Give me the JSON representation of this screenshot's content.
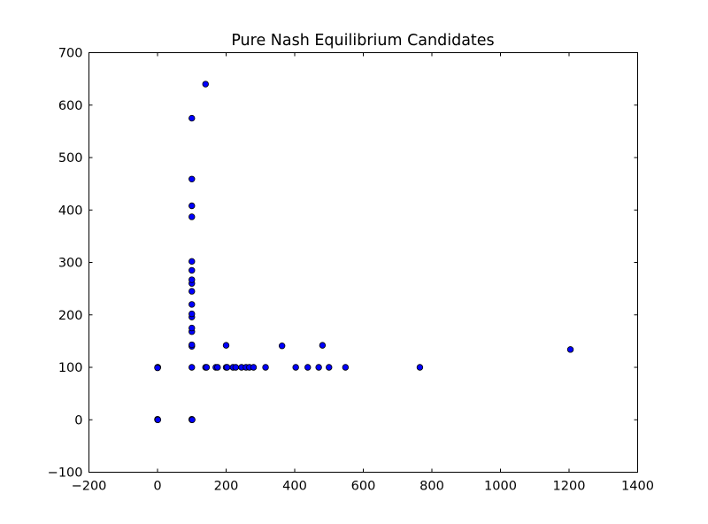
{
  "chart_data": {
    "type": "scatter",
    "title": "Pure Nash Equilibrium Candidates",
    "xlabel": "",
    "ylabel": "",
    "xlim": [
      -200,
      1400
    ],
    "ylim": [
      -100,
      700
    ],
    "xticks": [
      -200,
      0,
      200,
      400,
      600,
      800,
      1000,
      1200,
      1400
    ],
    "yticks": [
      -100,
      0,
      100,
      200,
      300,
      400,
      500,
      600,
      700
    ],
    "xtick_labels": [
      "−200",
      "0",
      "200",
      "400",
      "600",
      "800",
      "1000",
      "1200",
      "1400"
    ],
    "ytick_labels": [
      "−100",
      "0",
      "100",
      "200",
      "300",
      "400",
      "500",
      "600",
      "700"
    ],
    "grid": false,
    "marker_color": "#0000ff",
    "points": [
      {
        "x": 0,
        "y": 0
      },
      {
        "x": 0,
        "y": 1
      },
      {
        "x": 1,
        "y": 0
      },
      {
        "x": 0,
        "y": 100
      },
      {
        "x": 1,
        "y": 100
      },
      {
        "x": 0,
        "y": 99
      },
      {
        "x": 100,
        "y": 0
      },
      {
        "x": 100,
        "y": 1
      },
      {
        "x": 101,
        "y": 0
      },
      {
        "x": 100,
        "y": 100
      },
      {
        "x": 100,
        "y": 140
      },
      {
        "x": 100,
        "y": 143
      },
      {
        "x": 100,
        "y": 168
      },
      {
        "x": 100,
        "y": 175
      },
      {
        "x": 100,
        "y": 196
      },
      {
        "x": 100,
        "y": 202
      },
      {
        "x": 100,
        "y": 220
      },
      {
        "x": 100,
        "y": 245
      },
      {
        "x": 100,
        "y": 260
      },
      {
        "x": 100,
        "y": 267
      },
      {
        "x": 100,
        "y": 285
      },
      {
        "x": 100,
        "y": 302
      },
      {
        "x": 100,
        "y": 387
      },
      {
        "x": 100,
        "y": 408
      },
      {
        "x": 100,
        "y": 459
      },
      {
        "x": 100,
        "y": 575
      },
      {
        "x": 140,
        "y": 640
      },
      {
        "x": 140,
        "y": 100
      },
      {
        "x": 143,
        "y": 100
      },
      {
        "x": 170,
        "y": 100
      },
      {
        "x": 175,
        "y": 100
      },
      {
        "x": 200,
        "y": 100
      },
      {
        "x": 203,
        "y": 100
      },
      {
        "x": 200,
        "y": 142
      },
      {
        "x": 220,
        "y": 100
      },
      {
        "x": 228,
        "y": 100
      },
      {
        "x": 245,
        "y": 100
      },
      {
        "x": 258,
        "y": 100
      },
      {
        "x": 268,
        "y": 100
      },
      {
        "x": 280,
        "y": 100
      },
      {
        "x": 315,
        "y": 100
      },
      {
        "x": 363,
        "y": 141
      },
      {
        "x": 403,
        "y": 100
      },
      {
        "x": 438,
        "y": 100
      },
      {
        "x": 470,
        "y": 100
      },
      {
        "x": 481,
        "y": 142
      },
      {
        "x": 500,
        "y": 100
      },
      {
        "x": 548,
        "y": 100
      },
      {
        "x": 765,
        "y": 100
      },
      {
        "x": 1204,
        "y": 134
      }
    ]
  }
}
